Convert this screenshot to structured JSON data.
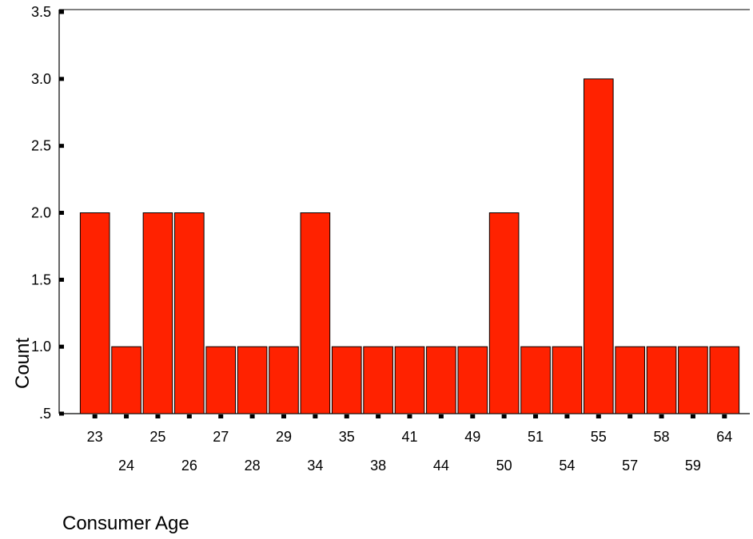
{
  "chart_data": {
    "type": "bar",
    "xlabel": "Consumer Age",
    "ylabel": "Count",
    "categories": [
      "23",
      "24",
      "25",
      "26",
      "27",
      "28",
      "29",
      "34",
      "35",
      "38",
      "41",
      "44",
      "49",
      "50",
      "51",
      "54",
      "55",
      "57",
      "58",
      "59",
      "64"
    ],
    "values": [
      2,
      1,
      2,
      2,
      1,
      1,
      1,
      2,
      1,
      1,
      1,
      1,
      1,
      2,
      1,
      1,
      3,
      1,
      1,
      1,
      1
    ],
    "ylim": [
      0.5,
      3.5
    ],
    "yticks": [
      ".5",
      "1.0",
      "1.5",
      "2.0",
      "2.5",
      "3.0",
      "3.5"
    ],
    "grid": false,
    "legend": "none",
    "bar_color": "#ff2200"
  }
}
